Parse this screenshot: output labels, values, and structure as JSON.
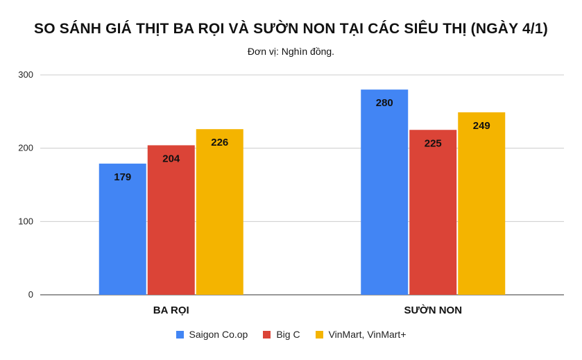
{
  "chart_data": {
    "type": "bar",
    "title": "SO SÁNH GIÁ THỊT BA RỌI VÀ SƯỜN NON TẠI CÁC SIÊU THỊ (NGÀY 4/1)",
    "subtitle": "Đơn vị: Nghìn đồng.",
    "categories": [
      "BA RỌI",
      "SƯỜN NON"
    ],
    "series": [
      {
        "name": "Saigon Co.op",
        "color": "#4285f4",
        "values": [
          179,
          280
        ]
      },
      {
        "name": "Big C",
        "color": "#db4437",
        "values": [
          204,
          225
        ]
      },
      {
        "name": "VinMart, VinMart+",
        "color": "#f4b400",
        "values": [
          226,
          249
        ]
      }
    ],
    "ylim": [
      0,
      300
    ],
    "yticks": [
      0,
      100,
      200,
      300
    ],
    "grid": true,
    "legend_position": "bottom",
    "data_labels": true
  }
}
